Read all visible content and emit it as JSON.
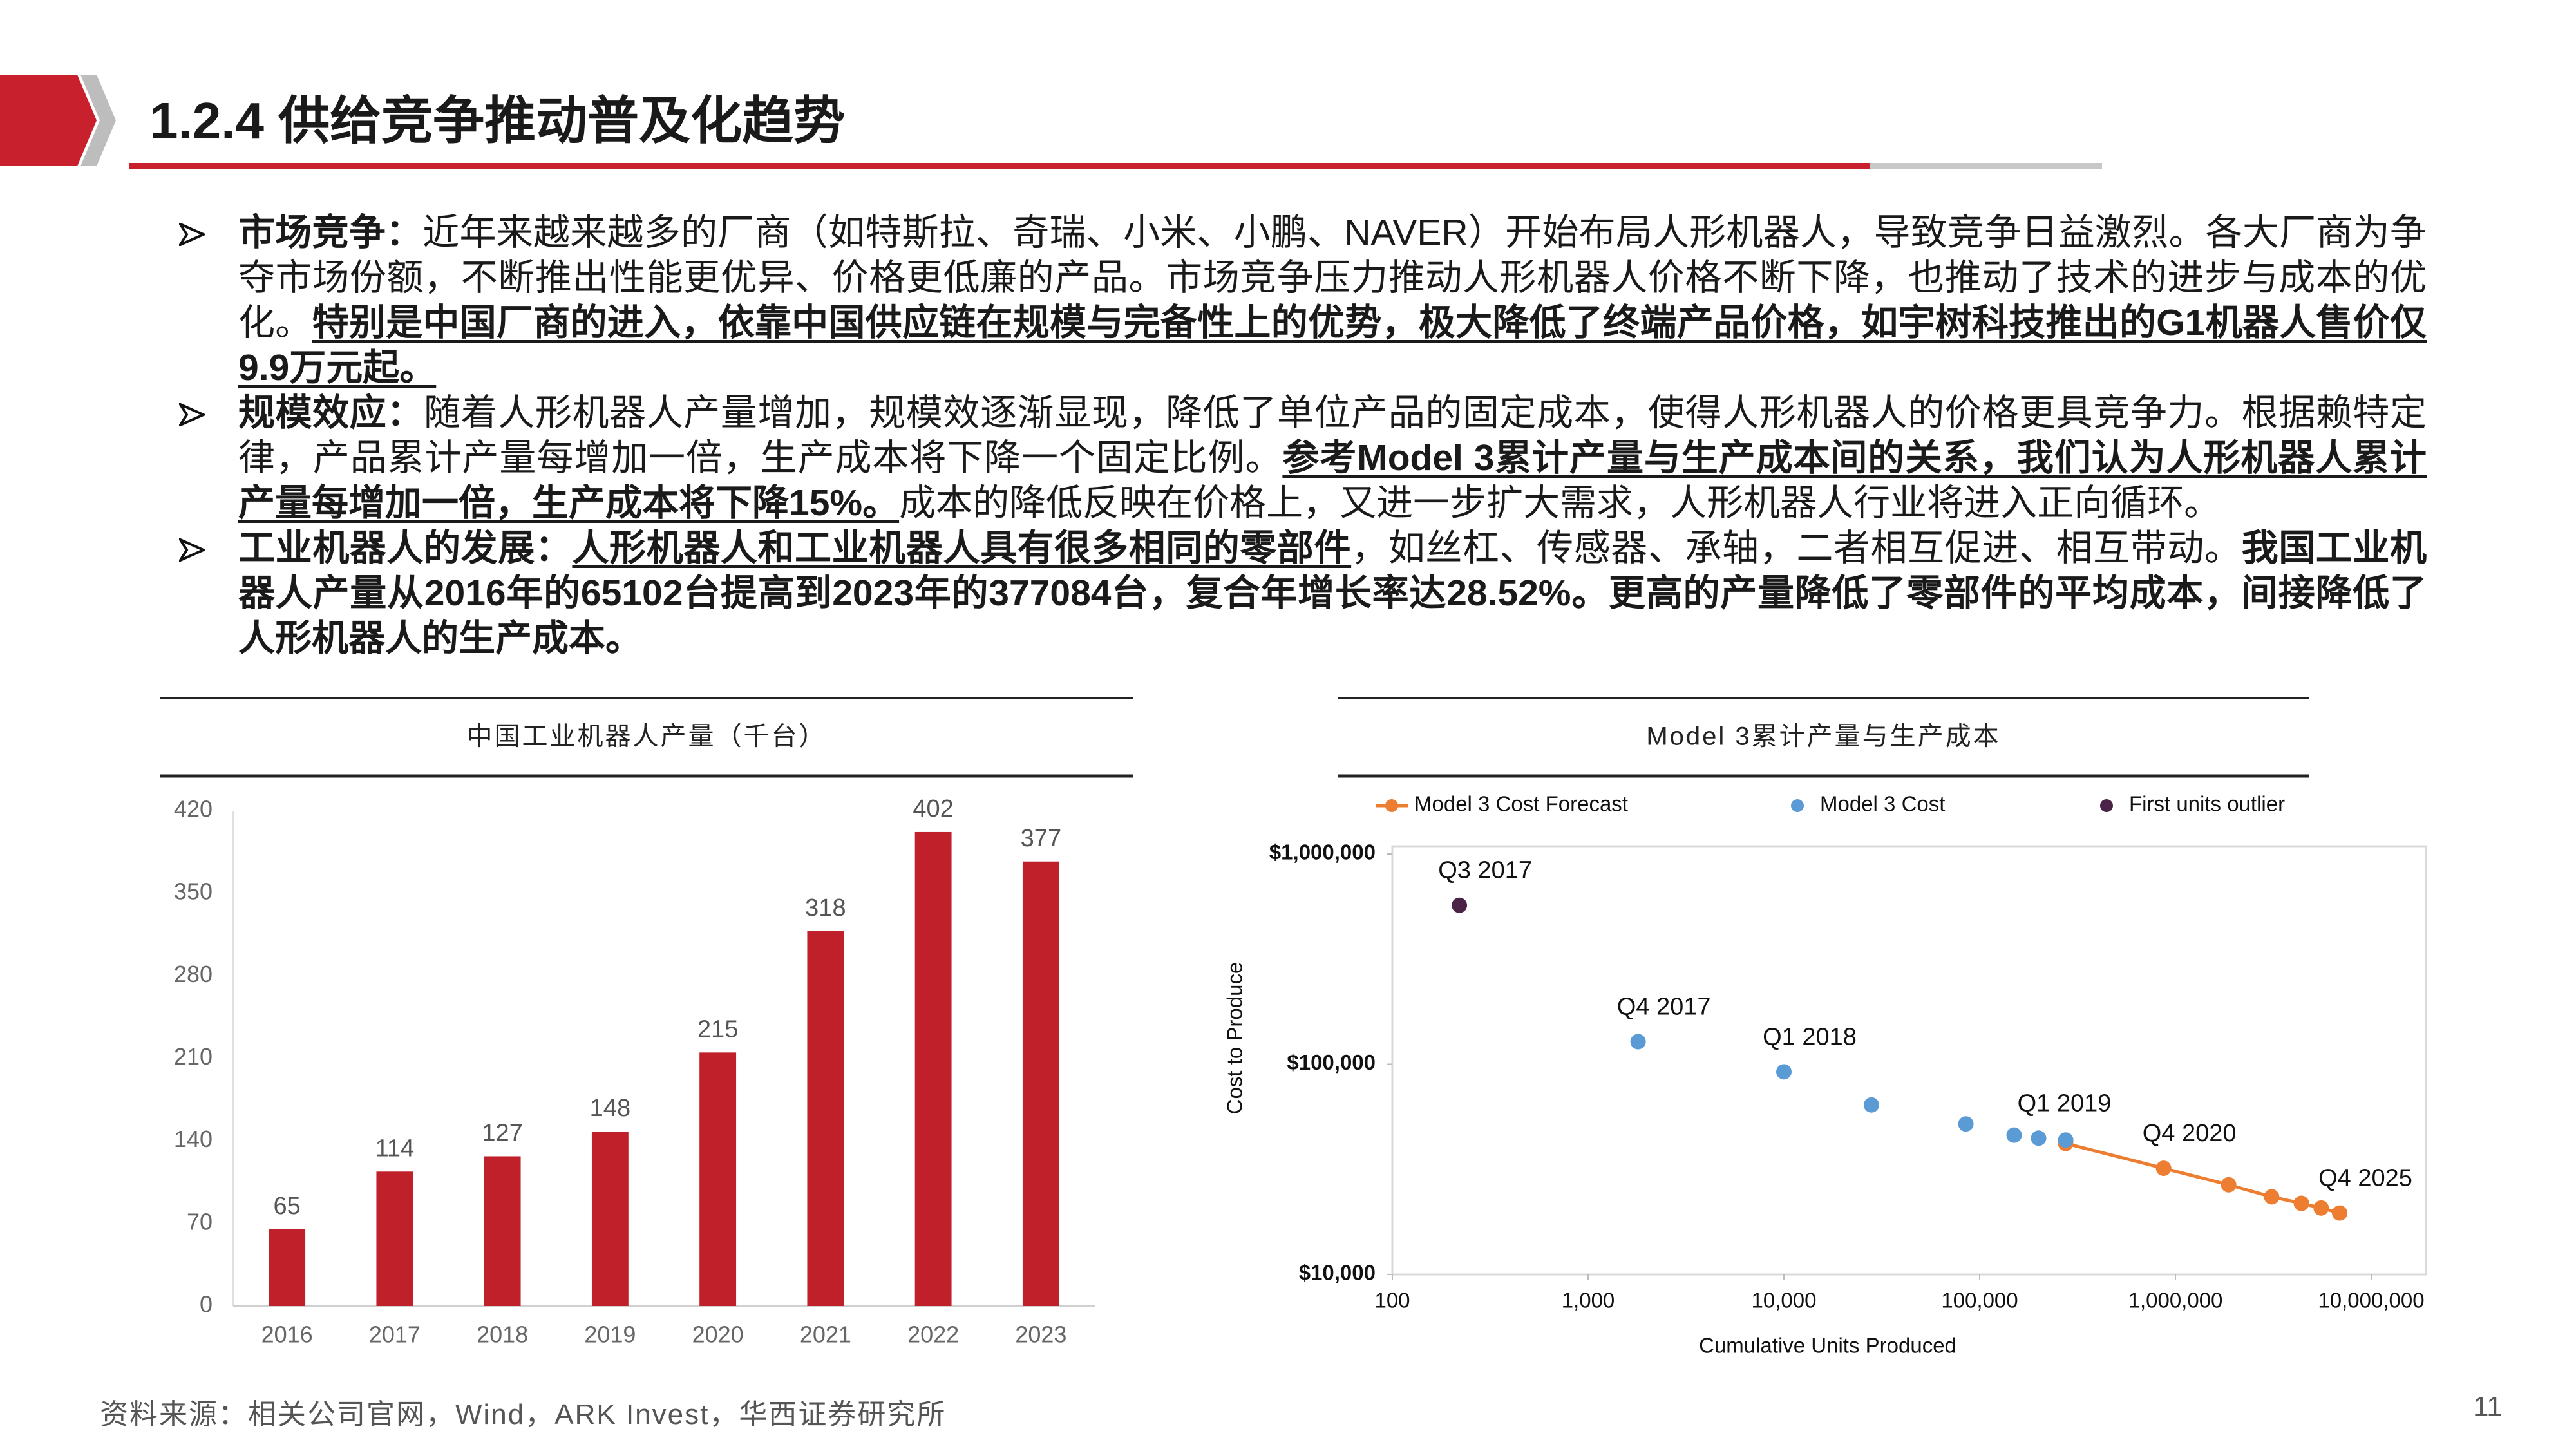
{
  "header": {
    "title": "1.2.4 供给竞争推动普及化趋势"
  },
  "bullets": [
    {
      "label": "市场竞争：",
      "parts": [
        {
          "text": "近年来越来越多的厂商（如特斯拉、奇瑞、小米、小鹏、NAVER）开始布局人形机器人，导致竞争日益激烈。各大厂商为争夺市场份额，不断推出性能更优异、价格更低廉的产品。市场竞争压力推动人形机器人价格不断下降，也推动了技术的进步与成本的优化。",
          "style": "plain"
        },
        {
          "text": "特别是中国厂商的进入，依靠中国供应链在规模与完备性上的优势，极大降低了终端产品价格，如宇树科技推出的G1机器人售价仅9.9万元起。",
          "style": "bold-underline"
        }
      ]
    },
    {
      "label": "规模效应：",
      "parts": [
        {
          "text": "随着人形机器人产量增加，规模效逐渐显现，降低了单位产品的固定成本，使得人形机器人的价格更具竞争力。根据赖特定律，产品累计产量每增加一倍，生产成本将下降一个固定比例。",
          "style": "plain"
        },
        {
          "text": "参考Model 3累计产量与生产成本间的关系，我们认为人形机器人累计产量每增加一倍，生产成本将下降15%。",
          "style": "bold-underline"
        },
        {
          "text": "成本的降低反映在价格上，又进一步扩大需求，人形机器人行业将进入正向循环。",
          "style": "plain"
        }
      ]
    },
    {
      "label": "工业机器人的发展：",
      "parts": [
        {
          "text": "人形机器人和工业机器人具有很多相同的零部件",
          "style": "bold-underline"
        },
        {
          "text": "，如丝杠、传感器、承轴，二者相互促进、相互带动。",
          "style": "plain"
        },
        {
          "text": "我国工业机器人产量从2016年的65102台提高到2023年的377084台，复合年增长率达28.52%。更高的产量降低了零部件的平均成本，间接降低了人形机器人的生产成本。",
          "style": "bold"
        }
      ]
    }
  ],
  "chart_data": [
    {
      "type": "bar",
      "title": "中国工业机器人产量（千台）",
      "categories": [
        "2016",
        "2017",
        "2018",
        "2019",
        "2020",
        "2021",
        "2022",
        "2023"
      ],
      "values": [
        65,
        114,
        127,
        148,
        215,
        318,
        402,
        377
      ],
      "color": "#c0202a",
      "ylim": [
        0,
        420
      ],
      "yticks": [
        0,
        70,
        140,
        210,
        280,
        350,
        420
      ],
      "grid": false
    },
    {
      "type": "scatter",
      "title": "Model 3累计产量与生产成本",
      "log_x": true,
      "log_y": true,
      "xlabel": "Cumulative Units Produced",
      "ylabel": "Cost to Produce",
      "xlim": [
        100,
        10000000
      ],
      "xticks": [
        100,
        {
          "value": 1000,
          "label": "1,000"
        },
        {
          "value": 10000,
          "label": "10,000"
        },
        {
          "value": 100000,
          "label": "100,000"
        },
        {
          "value": 1000000,
          "label": "1,000,000"
        },
        {
          "value": 10000000,
          "label": "10,000,000"
        }
      ],
      "ylim": [
        10000,
        1000000
      ],
      "yticks": [
        {
          "value": 10000,
          "label": "$10,000"
        },
        {
          "value": 100000,
          "label": "$100,000"
        },
        {
          "value": 1000000,
          "label": "$1,000,000"
        }
      ],
      "series": [
        {
          "name": "Model 3 Cost Forecast",
          "color": "#ed7d31",
          "line": true,
          "x": [
            275000,
            870000,
            1870000,
            3100000,
            4400000,
            5550000,
            6900000
          ],
          "values": [
            42000,
            32000,
            26700,
            23400,
            21800,
            20700,
            19600
          ],
          "labels": [
            null,
            "Q4 2020",
            null,
            null,
            null,
            null,
            "Q4 2025"
          ]
        },
        {
          "name": "Model 3 Cost",
          "color": "#5b9bd5",
          "line": false,
          "x": [
            1800,
            10000,
            28000,
            85000,
            150000,
            200000,
            275000
          ],
          "values": [
            128000,
            92000,
            64000,
            52000,
            46000,
            44500,
            43600
          ],
          "labels": [
            "Q4 2017",
            "Q1 2018",
            null,
            null,
            null,
            "Q1 2019",
            null
          ]
        },
        {
          "name": "First units outlier",
          "color": "#4b2347",
          "line": false,
          "x": [
            220
          ],
          "values": [
            570000
          ],
          "labels": [
            "Q3 2017"
          ]
        }
      ]
    }
  ],
  "footer": {
    "source": "资料来源：相关公司官网，Wind，ARK Invest，华西证券研究所",
    "page": "11"
  }
}
